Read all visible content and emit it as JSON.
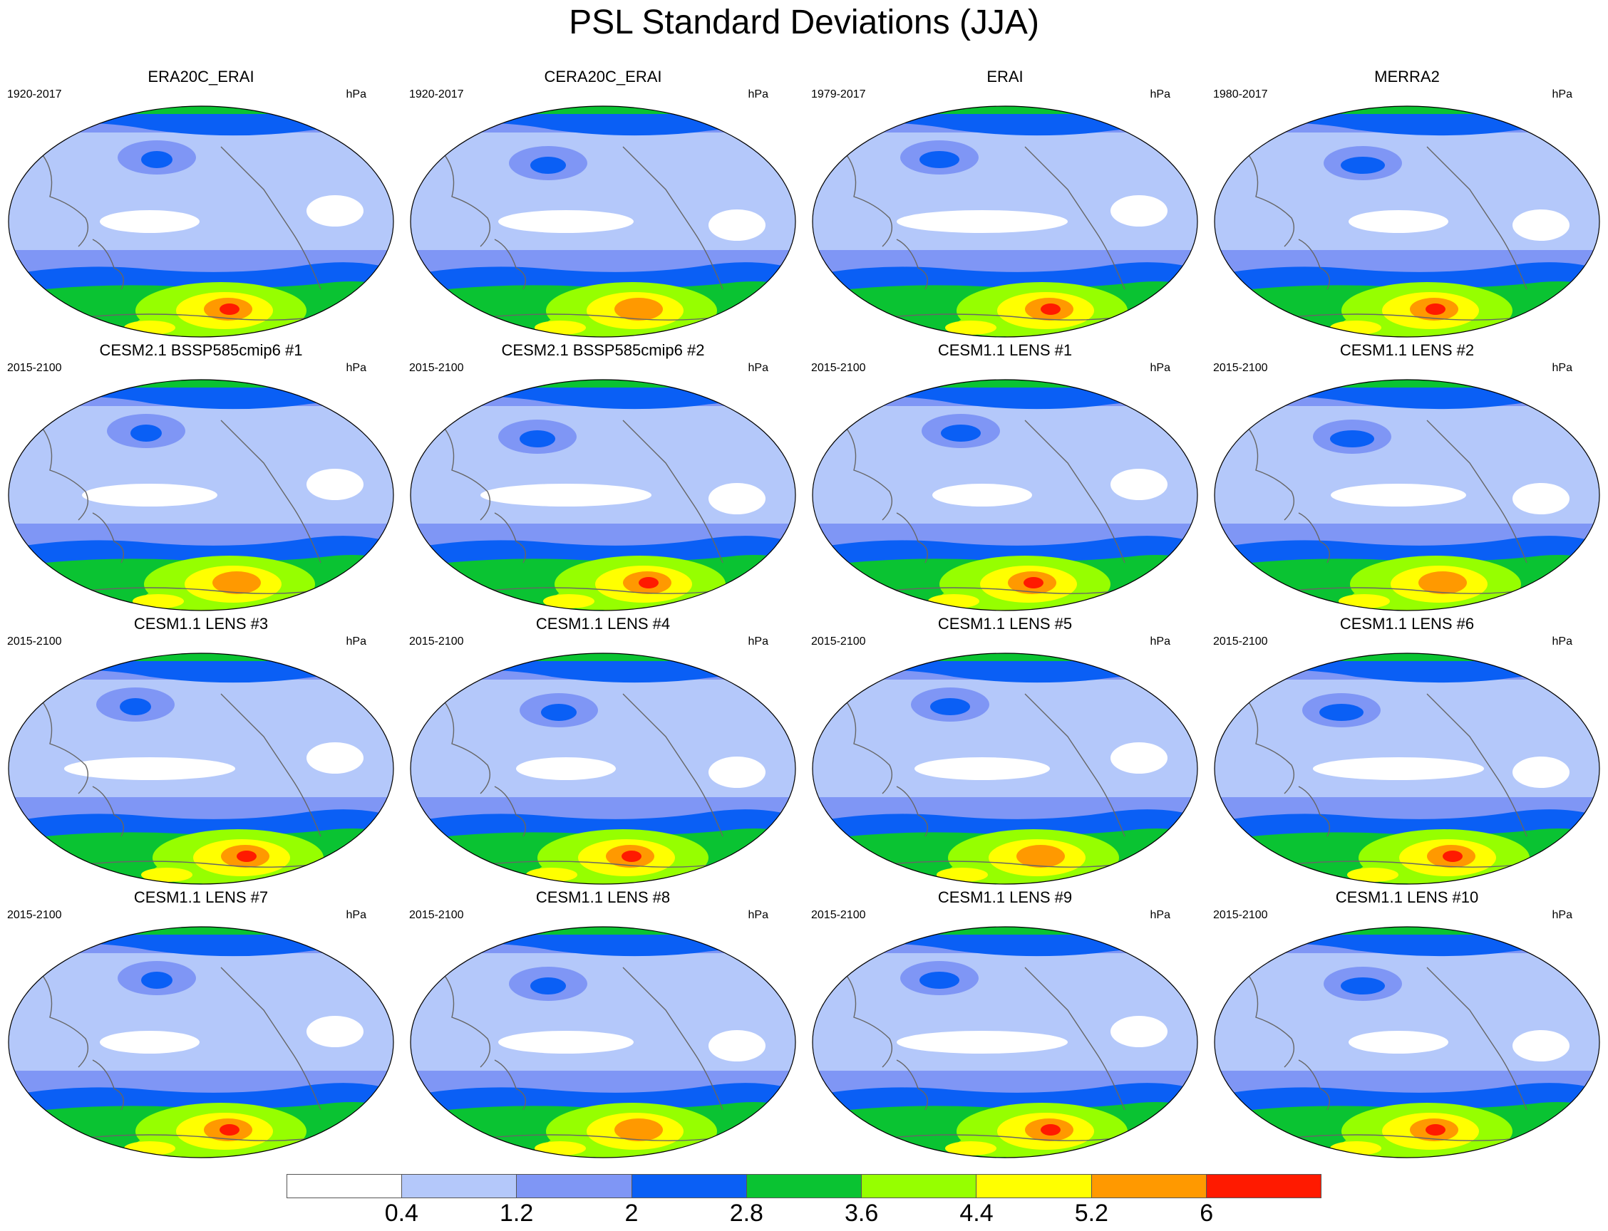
{
  "title": "PSL Standard Deviations (JJA)",
  "panels": [
    {
      "title": "ERA20C_ERAI",
      "period": "1920-2017",
      "unit": "hPa"
    },
    {
      "title": "CERA20C_ERAI",
      "period": "1920-2017",
      "unit": "hPa"
    },
    {
      "title": "ERAI",
      "period": "1979-2017",
      "unit": "hPa"
    },
    {
      "title": "MERRA2",
      "period": "1980-2017",
      "unit": "hPa"
    },
    {
      "title": "CESM2.1 BSSP585cmip6 #1",
      "period": "2015-2100",
      "unit": "hPa"
    },
    {
      "title": "CESM2.1 BSSP585cmip6 #2",
      "period": "2015-2100",
      "unit": "hPa"
    },
    {
      "title": "CESM1.1 LENS #1",
      "period": "2015-2100",
      "unit": "hPa"
    },
    {
      "title": "CESM1.1 LENS #2",
      "period": "2015-2100",
      "unit": "hPa"
    },
    {
      "title": "CESM1.1 LENS #3",
      "period": "2015-2100",
      "unit": "hPa"
    },
    {
      "title": "CESM1.1 LENS #4",
      "period": "2015-2100",
      "unit": "hPa"
    },
    {
      "title": "CESM1.1 LENS #5",
      "period": "2015-2100",
      "unit": "hPa"
    },
    {
      "title": "CESM1.1 LENS #6",
      "period": "2015-2100",
      "unit": "hPa"
    },
    {
      "title": "CESM1.1 LENS #7",
      "period": "2015-2100",
      "unit": "hPa"
    },
    {
      "title": "CESM1.1 LENS #8",
      "period": "2015-2100",
      "unit": "hPa"
    },
    {
      "title": "CESM1.1 LENS #9",
      "period": "2015-2100",
      "unit": "hPa"
    },
    {
      "title": "CESM1.1 LENS #10",
      "period": "2015-2100",
      "unit": "hPa"
    }
  ],
  "colorbar": {
    "colors": [
      "#ffffff",
      "#b4c8fa",
      "#7f96f5",
      "#0a5ff5",
      "#0ac332",
      "#96ff00",
      "#ffff00",
      "#ff9900",
      "#ff1a00"
    ],
    "labels": [
      "0.4",
      "1.2",
      "2",
      "2.8",
      "3.6",
      "4.4",
      "5.2",
      "6"
    ]
  }
}
